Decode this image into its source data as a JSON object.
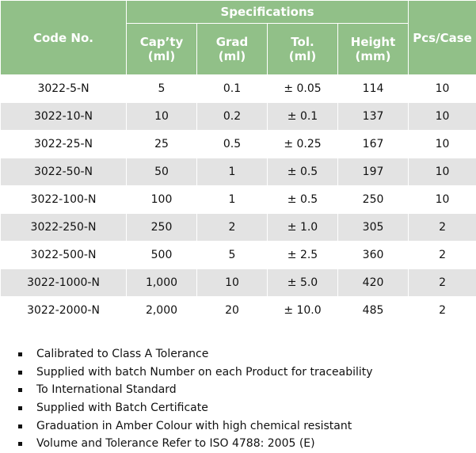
{
  "table": {
    "headers": {
      "code": "Code No.",
      "specifications": "Specifications",
      "capacity": "Cap’ty\n(ml)",
      "grad": "Grad\n(ml)",
      "tol": "Tol.\n(ml)",
      "height": "Height\n(mm)",
      "pcs": "Pcs/Case"
    },
    "rows": [
      {
        "code": "3022-5-N",
        "cap": "5",
        "grad": "0.1",
        "tol": "± 0.05",
        "height": "114",
        "pcs": "10"
      },
      {
        "code": "3022-10-N",
        "cap": "10",
        "grad": "0.2",
        "tol": "± 0.1",
        "height": "137",
        "pcs": "10"
      },
      {
        "code": "3022-25-N",
        "cap": "25",
        "grad": "0.5",
        "tol": "± 0.25",
        "height": "167",
        "pcs": "10"
      },
      {
        "code": "3022-50-N",
        "cap": "50",
        "grad": "1",
        "tol": "± 0.5",
        "height": "197",
        "pcs": "10"
      },
      {
        "code": "3022-100-N",
        "cap": "100",
        "grad": "1",
        "tol": "± 0.5",
        "height": "250",
        "pcs": "10"
      },
      {
        "code": "3022-250-N",
        "cap": "250",
        "grad": "2",
        "tol": "± 1.0",
        "height": "305",
        "pcs": "2"
      },
      {
        "code": "3022-500-N",
        "cap": "500",
        "grad": "5",
        "tol": "± 2.5",
        "height": "360",
        "pcs": "2"
      },
      {
        "code": "3022-1000-N",
        "cap": "1,000",
        "grad": "10",
        "tol": "± 5.0",
        "height": "420",
        "pcs": "2"
      },
      {
        "code": "3022-2000-N",
        "cap": "2,000",
        "grad": "20",
        "tol": "± 10.0",
        "height": "485",
        "pcs": "2"
      }
    ]
  },
  "notes": [
    "Calibrated to Class A Tolerance",
    "Supplied with batch Number on each Product for traceability",
    "To International Standard",
    "Supplied with Batch Certificate",
    "Graduation in Amber Colour with high chemical resistant",
    "Volume and Tolerance Refer to ISO 4788: 2005 (E)"
  ],
  "colors": {
    "header_green": "#91c088",
    "row_alt_gray": "#e3e3e3"
  }
}
